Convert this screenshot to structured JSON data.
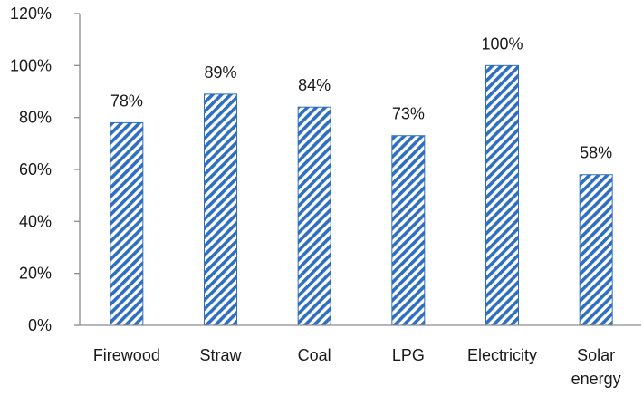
{
  "chart_data": {
    "type": "bar",
    "title": "",
    "xlabel": "",
    "ylabel": "",
    "categories": [
      [
        "Firewood"
      ],
      [
        "Straw"
      ],
      [
        "Coal"
      ],
      [
        "LPG"
      ],
      [
        "Electricity"
      ],
      [
        "Solar",
        "energy"
      ]
    ],
    "values": [
      78,
      89,
      84,
      73,
      100,
      58
    ],
    "data_labels": [
      "78%",
      "89%",
      "84%",
      "73%",
      "100%",
      "58%"
    ],
    "ylim": [
      0,
      120
    ],
    "yticks": [
      0,
      20,
      40,
      60,
      80,
      100,
      120
    ],
    "ytick_labels": [
      "0%",
      "20%",
      "40%",
      "60%",
      "80%",
      "100%",
      "120%"
    ],
    "grid": false,
    "legend": "none",
    "bar_color": "#2f6fbf",
    "bar_pattern": "diagonal-hatch"
  }
}
